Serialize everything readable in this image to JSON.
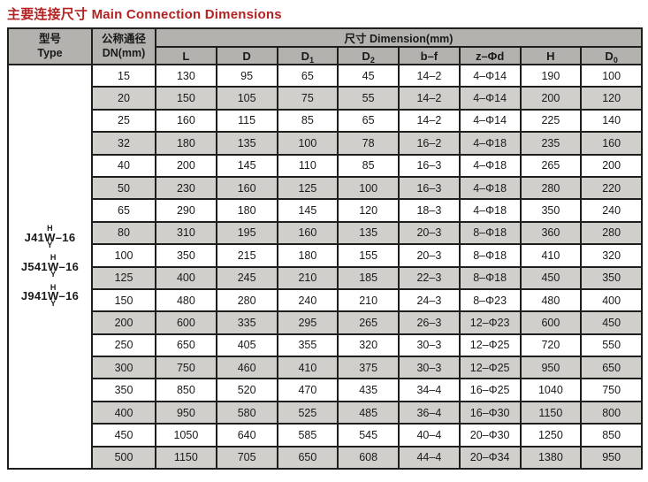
{
  "title": "主要连接尺寸 Main Connection Dimensions",
  "colors": {
    "title_red": "#b22222",
    "header_bg": "#b3b2ae",
    "stripe_bg": "#d0cfcb",
    "border": "#1e1e1c"
  },
  "table": {
    "type_header_zh": "型号",
    "type_header_en": "Type",
    "dn_header_zh": "公称通径",
    "dn_header_en": "DN(mm)",
    "dimension_header": "尺寸 Dimension(mm)",
    "columns": [
      {
        "text": "L",
        "sub": ""
      },
      {
        "text": "D",
        "sub": ""
      },
      {
        "text": "D",
        "sub": "1"
      },
      {
        "text": "D",
        "sub": "2"
      },
      {
        "text": "b–f",
        "sub": ""
      },
      {
        "text": "z–Φd",
        "sub": ""
      },
      {
        "text": "H",
        "sub": ""
      },
      {
        "text": "D",
        "sub": "0"
      }
    ],
    "models": [
      {
        "prefix": "J41",
        "top": "H",
        "mid": "W",
        "bottom": "Y",
        "suffix": "–16"
      },
      {
        "prefix": "J541",
        "top": "H",
        "mid": "W",
        "bottom": "Y",
        "suffix": "–16"
      },
      {
        "prefix": "J941",
        "top": "H",
        "mid": "W",
        "bottom": "Y",
        "suffix": "–16"
      }
    ],
    "rows": [
      {
        "dn": "15",
        "values": [
          "130",
          "95",
          "65",
          "45",
          "14–2",
          "4–Φ14",
          "190",
          "100"
        ]
      },
      {
        "dn": "20",
        "values": [
          "150",
          "105",
          "75",
          "55",
          "14–2",
          "4–Φ14",
          "200",
          "120"
        ]
      },
      {
        "dn": "25",
        "values": [
          "160",
          "115",
          "85",
          "65",
          "14–2",
          "4–Φ14",
          "225",
          "140"
        ]
      },
      {
        "dn": "32",
        "values": [
          "180",
          "135",
          "100",
          "78",
          "16–2",
          "4–Φ18",
          "235",
          "160"
        ]
      },
      {
        "dn": "40",
        "values": [
          "200",
          "145",
          "110",
          "85",
          "16–3",
          "4–Φ18",
          "265",
          "200"
        ]
      },
      {
        "dn": "50",
        "values": [
          "230",
          "160",
          "125",
          "100",
          "16–3",
          "4–Φ18",
          "280",
          "220"
        ]
      },
      {
        "dn": "65",
        "values": [
          "290",
          "180",
          "145",
          "120",
          "18–3",
          "4–Φ18",
          "350",
          "240"
        ]
      },
      {
        "dn": "80",
        "values": [
          "310",
          "195",
          "160",
          "135",
          "20–3",
          "8–Φ18",
          "360",
          "280"
        ]
      },
      {
        "dn": "100",
        "values": [
          "350",
          "215",
          "180",
          "155",
          "20–3",
          "8–Φ18",
          "410",
          "320"
        ]
      },
      {
        "dn": "125",
        "values": [
          "400",
          "245",
          "210",
          "185",
          "22–3",
          "8–Φ18",
          "450",
          "350"
        ]
      },
      {
        "dn": "150",
        "values": [
          "480",
          "280",
          "240",
          "210",
          "24–3",
          "8–Φ23",
          "480",
          "400"
        ]
      },
      {
        "dn": "200",
        "values": [
          "600",
          "335",
          "295",
          "265",
          "26–3",
          "12–Φ23",
          "600",
          "450"
        ]
      },
      {
        "dn": "250",
        "values": [
          "650",
          "405",
          "355",
          "320",
          "30–3",
          "12–Φ25",
          "720",
          "550"
        ]
      },
      {
        "dn": "300",
        "values": [
          "750",
          "460",
          "410",
          "375",
          "30–3",
          "12–Φ25",
          "950",
          "650"
        ]
      },
      {
        "dn": "350",
        "values": [
          "850",
          "520",
          "470",
          "435",
          "34–4",
          "16–Φ25",
          "1040",
          "750"
        ]
      },
      {
        "dn": "400",
        "values": [
          "950",
          "580",
          "525",
          "485",
          "36–4",
          "16–Φ30",
          "1150",
          "800"
        ]
      },
      {
        "dn": "450",
        "values": [
          "1050",
          "640",
          "585",
          "545",
          "40–4",
          "20–Φ30",
          "1250",
          "850"
        ]
      },
      {
        "dn": "500",
        "values": [
          "1150",
          "705",
          "650",
          "608",
          "44–4",
          "20–Φ34",
          "1380",
          "950"
        ]
      }
    ]
  }
}
